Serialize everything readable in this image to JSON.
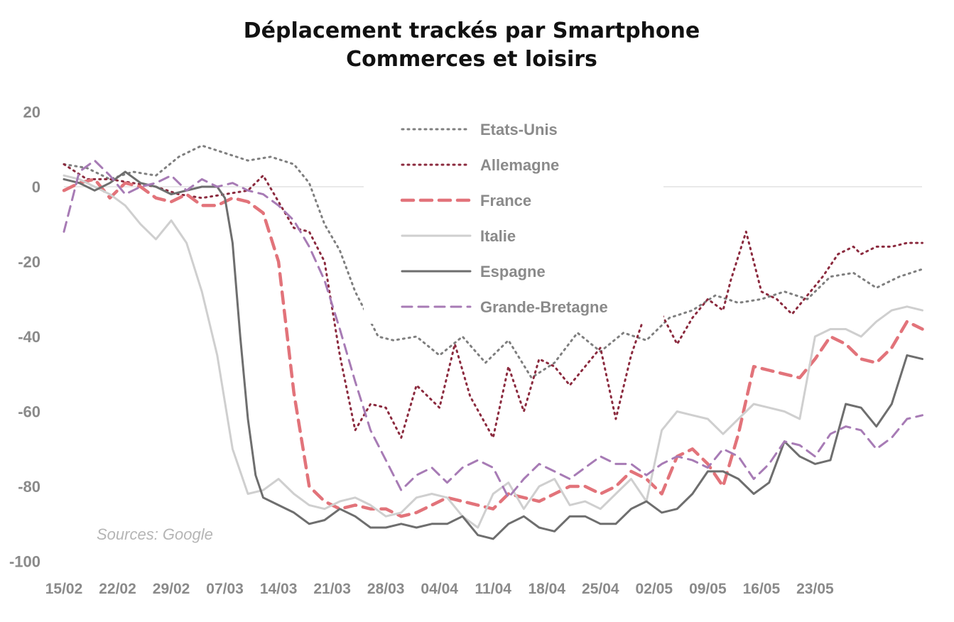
{
  "chart_data": {
    "type": "line",
    "title": "Déplacement trackés par Smartphone",
    "subtitle": "Commerces et loisirs",
    "source": "Sources: Google",
    "xlabel": "",
    "ylabel": "",
    "ylim": [
      -100,
      20
    ],
    "yticks": [
      20,
      0,
      -20,
      -40,
      -60,
      -80,
      -100
    ],
    "xticks": [
      "15/02",
      "22/02",
      "29/02",
      "07/03",
      "14/03",
      "21/03",
      "28/03",
      "04/04",
      "11/04",
      "18/04",
      "25/04",
      "02/05",
      "09/05",
      "16/05",
      "23/05"
    ],
    "grid": "zero line only",
    "legend_position": "top-center",
    "colors": {
      "etats_unis": "#7f7f7f",
      "allemagne": "#8b2a3e",
      "france": "#e2737a",
      "italie": "#cfcfcf",
      "espagne": "#6e6e6e",
      "grande_bretagne": "#a77bb5"
    },
    "series": [
      {
        "key": "etats_unis",
        "name": "Etats-Unis",
        "style": "dotted",
        "days": [
          0,
          3,
          6,
          9,
          12,
          15,
          18,
          21,
          24,
          27,
          30,
          32,
          34,
          36,
          38,
          41,
          43,
          46,
          49,
          52,
          55,
          58,
          61,
          64,
          67,
          70,
          73,
          76,
          79,
          82,
          85,
          88,
          91,
          94,
          97,
          100,
          103,
          106,
          109,
          112
        ],
        "values": [
          6,
          5,
          2,
          4,
          3,
          8,
          11,
          9,
          7,
          8,
          6,
          1,
          -10,
          -17,
          -28,
          -40,
          -41,
          -40,
          -45,
          -40,
          -47,
          -41,
          -51,
          -47,
          -39,
          -44,
          -39,
          -41,
          -35,
          -33,
          -29,
          -31,
          -30,
          -28,
          -30,
          -24,
          -23,
          -27,
          -24,
          -22
        ]
      },
      {
        "key": "allemagne",
        "name": "Allemagne",
        "style": "dotted",
        "days": [
          0,
          3,
          6,
          9,
          12,
          15,
          18,
          21,
          24,
          26,
          28,
          30,
          32,
          34,
          36,
          38,
          40,
          42,
          44,
          46,
          49,
          51,
          53,
          56,
          58,
          60,
          62,
          64,
          66,
          68,
          70,
          72,
          74,
          76,
          78,
          80,
          82,
          84,
          86,
          87,
          89,
          91,
          93,
          95,
          97,
          99,
          101,
          103,
          104,
          106,
          108,
          110,
          112
        ],
        "values": [
          6,
          2,
          2,
          1,
          0,
          -2,
          -3,
          -2,
          -1,
          3,
          -4,
          -11,
          -12,
          -20,
          -45,
          -65,
          -58,
          -59,
          -67,
          -53,
          -59,
          -42,
          -56,
          -67,
          -48,
          -60,
          -46,
          -48,
          -53,
          -48,
          -43,
          -62,
          -45,
          -33,
          -34,
          -42,
          -35,
          -30,
          -33,
          -25,
          -12,
          -28,
          -30,
          -34,
          -29,
          -24,
          -18,
          -16,
          -18,
          -16,
          -16,
          -15,
          -15
        ]
      },
      {
        "key": "france",
        "name": "France",
        "style": "dashed",
        "days": [
          0,
          2,
          4,
          6,
          8,
          10,
          12,
          14,
          16,
          18,
          20,
          22,
          24,
          26,
          28,
          30,
          32,
          34,
          36,
          38,
          40,
          42,
          44,
          46,
          48,
          50,
          52,
          54,
          56,
          58,
          60,
          62,
          64,
          66,
          68,
          70,
          72,
          74,
          76,
          78,
          80,
          82,
          84,
          86,
          88,
          90,
          92,
          94,
          96,
          98,
          100,
          102,
          104,
          106,
          108,
          110,
          112
        ],
        "values": [
          -1,
          1,
          2,
          -3,
          1,
          0,
          -3,
          -4,
          -2,
          -5,
          -5,
          -3,
          -4,
          -7,
          -20,
          -55,
          -80,
          -84,
          -86,
          -85,
          -86,
          -86,
          -88,
          -87,
          -85,
          -83,
          -84,
          -85,
          -86,
          -82,
          -83,
          -84,
          -82,
          -80,
          -80,
          -82,
          -80,
          -76,
          -78,
          -82,
          -72,
          -70,
          -74,
          -80,
          -66,
          -48,
          -49,
          -50,
          -51,
          -46,
          -40,
          -42,
          -46,
          -47,
          -43,
          -36,
          -38
        ]
      },
      {
        "key": "italie",
        "name": "Italie",
        "style": "solid",
        "days": [
          0,
          2,
          4,
          6,
          8,
          10,
          12,
          14,
          16,
          18,
          20,
          22,
          24,
          26,
          28,
          29,
          30,
          32,
          34,
          36,
          38,
          40,
          42,
          44,
          46,
          48,
          50,
          52,
          54,
          56,
          58,
          60,
          62,
          64,
          66,
          68,
          70,
          72,
          74,
          76,
          78,
          80,
          82,
          84,
          86,
          88,
          90,
          92,
          94,
          96,
          98,
          100,
          102,
          104,
          106,
          108,
          110,
          112
        ],
        "values": [
          3,
          2,
          0,
          -2,
          -5,
          -10,
          -14,
          -9,
          -15,
          -28,
          -45,
          -70,
          -82,
          -81,
          -78,
          -80,
          -82,
          -85,
          -86,
          -84,
          -83,
          -85,
          -88,
          -87,
          -83,
          -82,
          -83,
          -88,
          -91,
          -82,
          -79,
          -86,
          -80,
          -78,
          -85,
          -84,
          -86,
          -82,
          -78,
          -84,
          -65,
          -60,
          -61,
          -62,
          -66,
          -62,
          -58,
          -59,
          -60,
          -62,
          -40,
          -38,
          -38,
          -40,
          -36,
          -33,
          -32,
          -33
        ]
      },
      {
        "key": "espagne",
        "name": "Espagne",
        "style": "solid",
        "days": [
          0,
          2,
          4,
          6,
          8,
          10,
          12,
          14,
          16,
          18,
          20,
          21,
          22,
          23,
          24,
          25,
          26,
          28,
          30,
          32,
          34,
          36,
          38,
          40,
          42,
          44,
          46,
          48,
          50,
          52,
          54,
          56,
          58,
          60,
          62,
          64,
          66,
          68,
          70,
          72,
          74,
          76,
          78,
          80,
          82,
          84,
          86,
          88,
          90,
          92,
          94,
          96,
          98,
          100,
          102,
          104,
          106,
          108,
          110,
          112
        ],
        "values": [
          2,
          1,
          -1,
          1,
          4,
          1,
          0,
          -2,
          -1,
          0,
          0,
          -3,
          -15,
          -40,
          -62,
          -77,
          -83,
          -85,
          -87,
          -90,
          -89,
          -86,
          -88,
          -91,
          -91,
          -90,
          -91,
          -90,
          -90,
          -88,
          -93,
          -94,
          -90,
          -88,
          -91,
          -92,
          -88,
          -88,
          -90,
          -90,
          -86,
          -84,
          -87,
          -86,
          -82,
          -76,
          -76,
          -78,
          -82,
          -79,
          -68,
          -72,
          -74,
          -73,
          -58,
          -59,
          -64,
          -58,
          -45,
          -46
        ]
      },
      {
        "key": "grande_bretagne",
        "name": "Grande-Bretagne",
        "style": "dashed",
        "days": [
          0,
          2,
          4,
          6,
          8,
          10,
          12,
          14,
          16,
          18,
          20,
          22,
          24,
          26,
          28,
          30,
          32,
          34,
          36,
          38,
          40,
          42,
          44,
          46,
          48,
          50,
          52,
          54,
          56,
          58,
          60,
          62,
          64,
          66,
          68,
          70,
          72,
          74,
          76,
          78,
          80,
          82,
          84,
          86,
          88,
          90,
          92,
          94,
          96,
          98,
          100,
          102,
          104,
          106,
          108,
          110,
          112
        ],
        "values": [
          -12,
          4,
          7,
          3,
          -2,
          0,
          1,
          3,
          -1,
          2,
          0,
          1,
          -1,
          -2,
          -5,
          -9,
          -16,
          -25,
          -38,
          -52,
          -65,
          -73,
          -81,
          -77,
          -75,
          -79,
          -75,
          -73,
          -75,
          -83,
          -78,
          -74,
          -76,
          -78,
          -75,
          -72,
          -74,
          -74,
          -77,
          -74,
          -72,
          -73,
          -75,
          -70,
          -72,
          -78,
          -74,
          -68,
          -69,
          -72,
          -66,
          -64,
          -65,
          -70,
          -67,
          -62,
          -61
        ]
      }
    ]
  }
}
